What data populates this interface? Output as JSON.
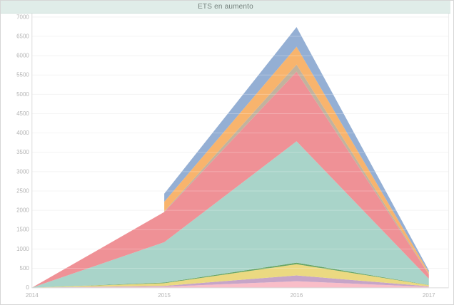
{
  "window": {
    "title_bar": {
      "label": "ETS en aumento",
      "bg": "#e0ede9",
      "text_color": "#74807c"
    }
  },
  "chart_data": {
    "type": "area",
    "stacked": true,
    "title": "ETS en aumento",
    "xlabel": "",
    "ylabel": "",
    "x": [
      2014,
      2015,
      2016,
      2017
    ],
    "x_tick_labels": [
      "2014",
      "2015",
      "2016",
      "2017"
    ],
    "y_ticks": [
      0,
      500,
      1000,
      1500,
      2000,
      2500,
      3000,
      3500,
      4000,
      4500,
      5000,
      5500,
      6000,
      6500,
      7000
    ],
    "ylim": [
      0,
      7000
    ],
    "grid": "horizontal",
    "legend": "none",
    "stack_order": "bottom-to-top",
    "series": [
      {
        "name": "pink",
        "color": "#f9bdc8",
        "values": [
          0,
          25,
          165,
          20
        ]
      },
      {
        "name": "purple",
        "color": "#c6a5c8",
        "values": [
          0,
          20,
          150,
          15
        ]
      },
      {
        "name": "yellow",
        "color": "#ebd981",
        "values": [
          0,
          70,
          290,
          30
        ]
      },
      {
        "name": "green",
        "color": "#67a564",
        "values": [
          0,
          15,
          40,
          5
        ]
      },
      {
        "name": "teal",
        "color": "#a9d4c9",
        "values": [
          0,
          1045,
          3140,
          160
        ]
      },
      {
        "name": "salmon",
        "color": "#ef9196",
        "values": [
          0,
          780,
          1800,
          110
        ]
      },
      {
        "name": "tan",
        "color": "#c2b39e",
        "values": [
          null,
          15,
          185,
          10
        ]
      },
      {
        "name": "orange",
        "color": "#f8b46d",
        "values": [
          null,
          250,
          460,
          45
        ]
      },
      {
        "name": "blue",
        "color": "#94afd4",
        "values": [
          null,
          210,
          510,
          50
        ]
      }
    ],
    "colors": {
      "grid": "#f1f1f1",
      "grid_overlay": "rgba(255,255,255,0.25)",
      "axis": "#dcdcdc",
      "plot_right_border": "#ededed",
      "tick_label": "#b3b3b3"
    }
  }
}
